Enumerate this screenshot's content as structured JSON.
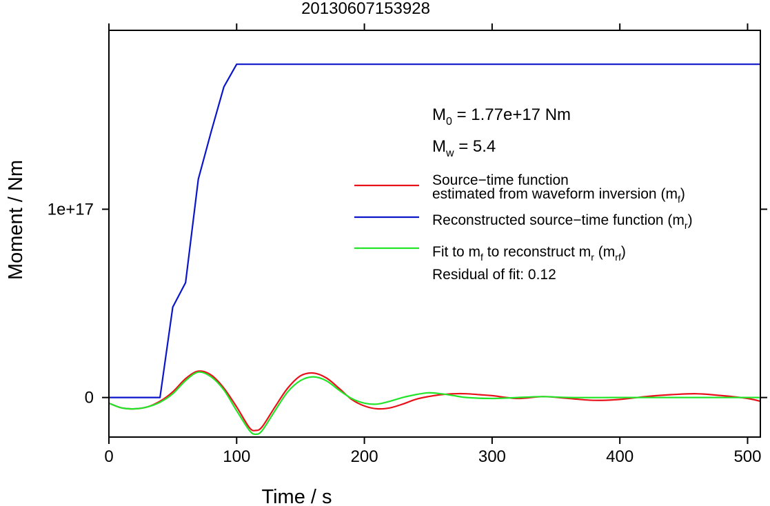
{
  "chart_data": {
    "type": "line",
    "title": "20130607153928",
    "xlabel": "Time / s",
    "ylabel": "Moment / Nm",
    "xlim": [
      0,
      510
    ],
    "ylim": [
      -2.1e+16,
      1.95e+17
    ],
    "x_ticks": [
      0,
      100,
      200,
      300,
      400,
      500
    ],
    "x_tick_labels": [
      "0",
      "100",
      "200",
      "300",
      "400",
      "500"
    ],
    "y_ticks": [
      0,
      1e+17
    ],
    "y_tick_labels": [
      "0",
      "1e+17"
    ],
    "grid": false,
    "legend_position": "right",
    "annotations": {
      "m0": {
        "prefix": "M",
        "sub": "0",
        "text": " = 1.77e+17 Nm"
      },
      "mw": {
        "prefix": "M",
        "sub": "w",
        "text": " = 5.4"
      },
      "residual": "Residual of fit: 0.12"
    },
    "series": [
      {
        "key": "mf",
        "color": "#e8111a",
        "legend_line1": "Source−time function",
        "legend_line2": "estimated from waveform inversion (m",
        "legend_sub": "f",
        "legend_close": ")",
        "x": [
          0,
          10,
          20,
          30,
          40,
          50,
          60,
          70,
          80,
          90,
          100,
          110,
          115,
          120,
          130,
          140,
          150,
          160,
          170,
          180,
          190,
          200,
          210,
          220,
          230,
          240,
          250,
          260,
          270,
          280,
          290,
          300,
          320,
          340,
          360,
          380,
          400,
          420,
          440,
          460,
          480,
          500,
          510
        ],
        "values": [
          -3000000000000000.0,
          -5500000000000000.0,
          -6000000000000000.0,
          -5000000000000000.0,
          -2000000000000000.0,
          3000000000000000.0,
          1e+16,
          1.4e+16,
          1.2e+16,
          5000000000000000.0,
          -5000000000000000.0,
          -1.6e+16,
          -1.75e+16,
          -1.55e+16,
          -5000000000000000.0,
          5000000000000000.0,
          1.15e+16,
          1.3e+16,
          1.05e+16,
          5000000000000000.0,
          -1000000000000000.0,
          -4500000000000000.0,
          -6000000000000000.0,
          -5500000000000000.0,
          -3500000000000000.0,
          -1000000000000000.0,
          500000000000000.0,
          1500000000000000.0,
          2000000000000000.0,
          2000000000000000.0,
          1500000000000000.0,
          1000000000000000.0,
          -500000000000000.0,
          500000000000000.0,
          -500000000000000.0,
          -1500000000000000.0,
          -1000000000000000.0,
          500000000000000.0,
          1500000000000000.0,
          2000000000000000.0,
          1000000000000000.0,
          -500000000000000.0,
          -2000000000000000.0
        ]
      },
      {
        "key": "mr",
        "color": "#0a14c8",
        "legend_text": "Reconstructed source−time function (m",
        "legend_sub": "r",
        "legend_close": ")",
        "x": [
          0,
          40,
          50,
          60,
          70,
          80,
          90,
          100,
          510
        ],
        "values": [
          0,
          0,
          4.8e+16,
          6.1e+16,
          1.16e+17,
          1.41e+17,
          1.65e+17,
          1.77e+17,
          1.77e+17
        ]
      },
      {
        "key": "mrf",
        "color": "#22e52a",
        "legend_text1": "Fit to m",
        "legend_sub1": "f",
        "legend_text2": " to reconstruct m",
        "legend_sub2": "r",
        "legend_text3": " (m",
        "legend_sub3": "rf",
        "legend_close": ")",
        "x": [
          0,
          10,
          20,
          30,
          40,
          50,
          60,
          70,
          80,
          90,
          100,
          110,
          115,
          120,
          130,
          140,
          150,
          160,
          170,
          180,
          190,
          200,
          210,
          220,
          230,
          240,
          250,
          260,
          270,
          280,
          300,
          320,
          340,
          360,
          400,
          440,
          480,
          510
        ],
        "values": [
          -3000000000000000.0,
          -5500000000000000.0,
          -6000000000000000.0,
          -5000000000000000.0,
          -2500000000000000.0,
          2000000000000000.0,
          9000000000000000.0,
          1.35e+16,
          1.1e+16,
          4000000000000000.0,
          -7000000000000000.0,
          -1.75e+16,
          -1.95e+16,
          -1.75e+16,
          -7000000000000000.0,
          3000000000000000.0,
          9000000000000000.0,
          1.1e+16,
          9000000000000000.0,
          4000000000000000.0,
          -500000000000000.0,
          -3000000000000000.0,
          -3500000000000000.0,
          -2000000000000000.0,
          0,
          1500000000000000.0,
          2500000000000000.0,
          2000000000000000.0,
          1000000000000000.0,
          0,
          -500000000000000.0,
          0,
          500000000000000.0,
          0,
          0,
          0,
          0,
          0
        ]
      }
    ]
  }
}
